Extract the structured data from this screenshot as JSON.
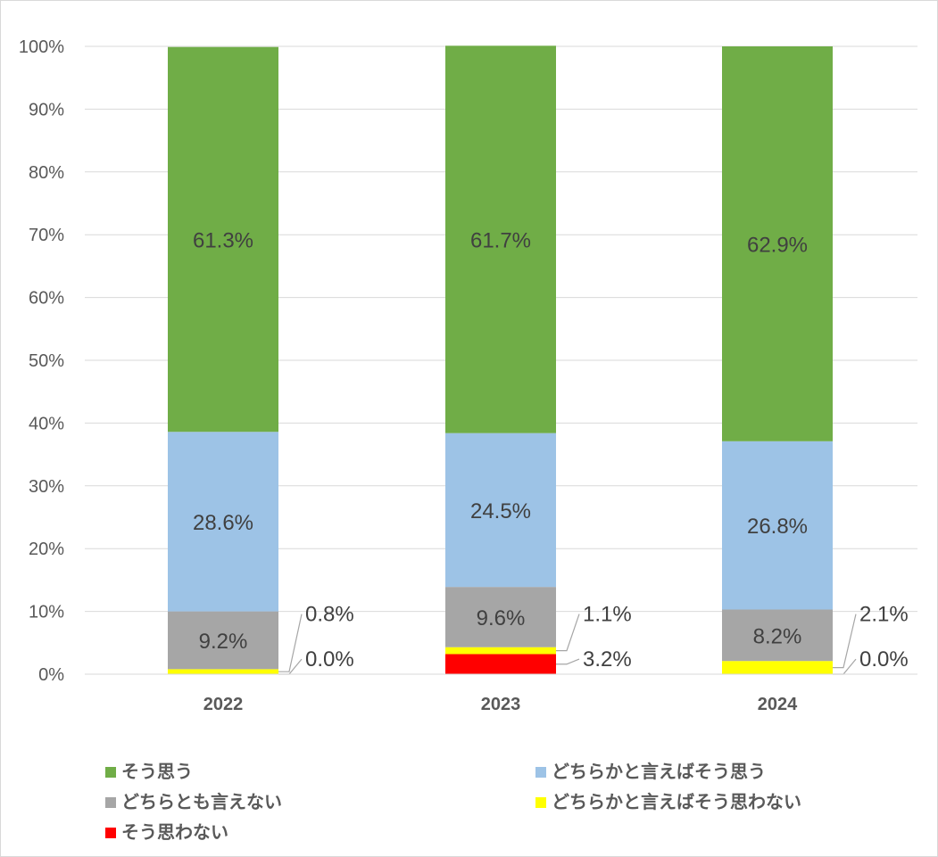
{
  "chart_data": {
    "type": "bar",
    "stacked": true,
    "percent": true,
    "categories": [
      "2022",
      "2023",
      "2024"
    ],
    "series": [
      {
        "name": "そう思わない",
        "color": "#ff0000",
        "values": [
          0.0,
          3.2,
          0.0
        ],
        "labels": [
          "0.0%",
          "3.2%",
          "0.0%"
        ]
      },
      {
        "name": "どちらかと言えばそう思わない",
        "color": "#ffff00",
        "values": [
          0.8,
          1.1,
          2.1
        ],
        "labels": [
          "0.8%",
          "1.1%",
          "2.1%"
        ]
      },
      {
        "name": "どちらとも言えない",
        "color": "#a6a6a6",
        "values": [
          9.2,
          9.6,
          8.2
        ],
        "labels": [
          "9.2%",
          "9.6%",
          "8.2%"
        ]
      },
      {
        "name": "どちらかと言えばそう思う",
        "color": "#9dc3e6",
        "values": [
          28.6,
          24.5,
          26.8
        ],
        "labels": [
          "28.6%",
          "24.5%",
          "26.8%"
        ]
      },
      {
        "name": "そう思う",
        "color": "#70ad47",
        "values": [
          61.3,
          61.7,
          62.9
        ],
        "labels": [
          "61.3%",
          "61.7%",
          "62.9%"
        ]
      }
    ],
    "ylim": [
      0,
      100
    ],
    "yticks": [
      "0%",
      "10%",
      "20%",
      "30%",
      "40%",
      "50%",
      "60%",
      "70%",
      "80%",
      "90%",
      "100%"
    ],
    "grid": true,
    "legend": {
      "position": "bottom",
      "order": [
        "そう思う",
        "どちらかと言えばそう思う",
        "どちらとも言えない",
        "どちらかと言えばそう思わない",
        "そう思わない"
      ]
    }
  }
}
